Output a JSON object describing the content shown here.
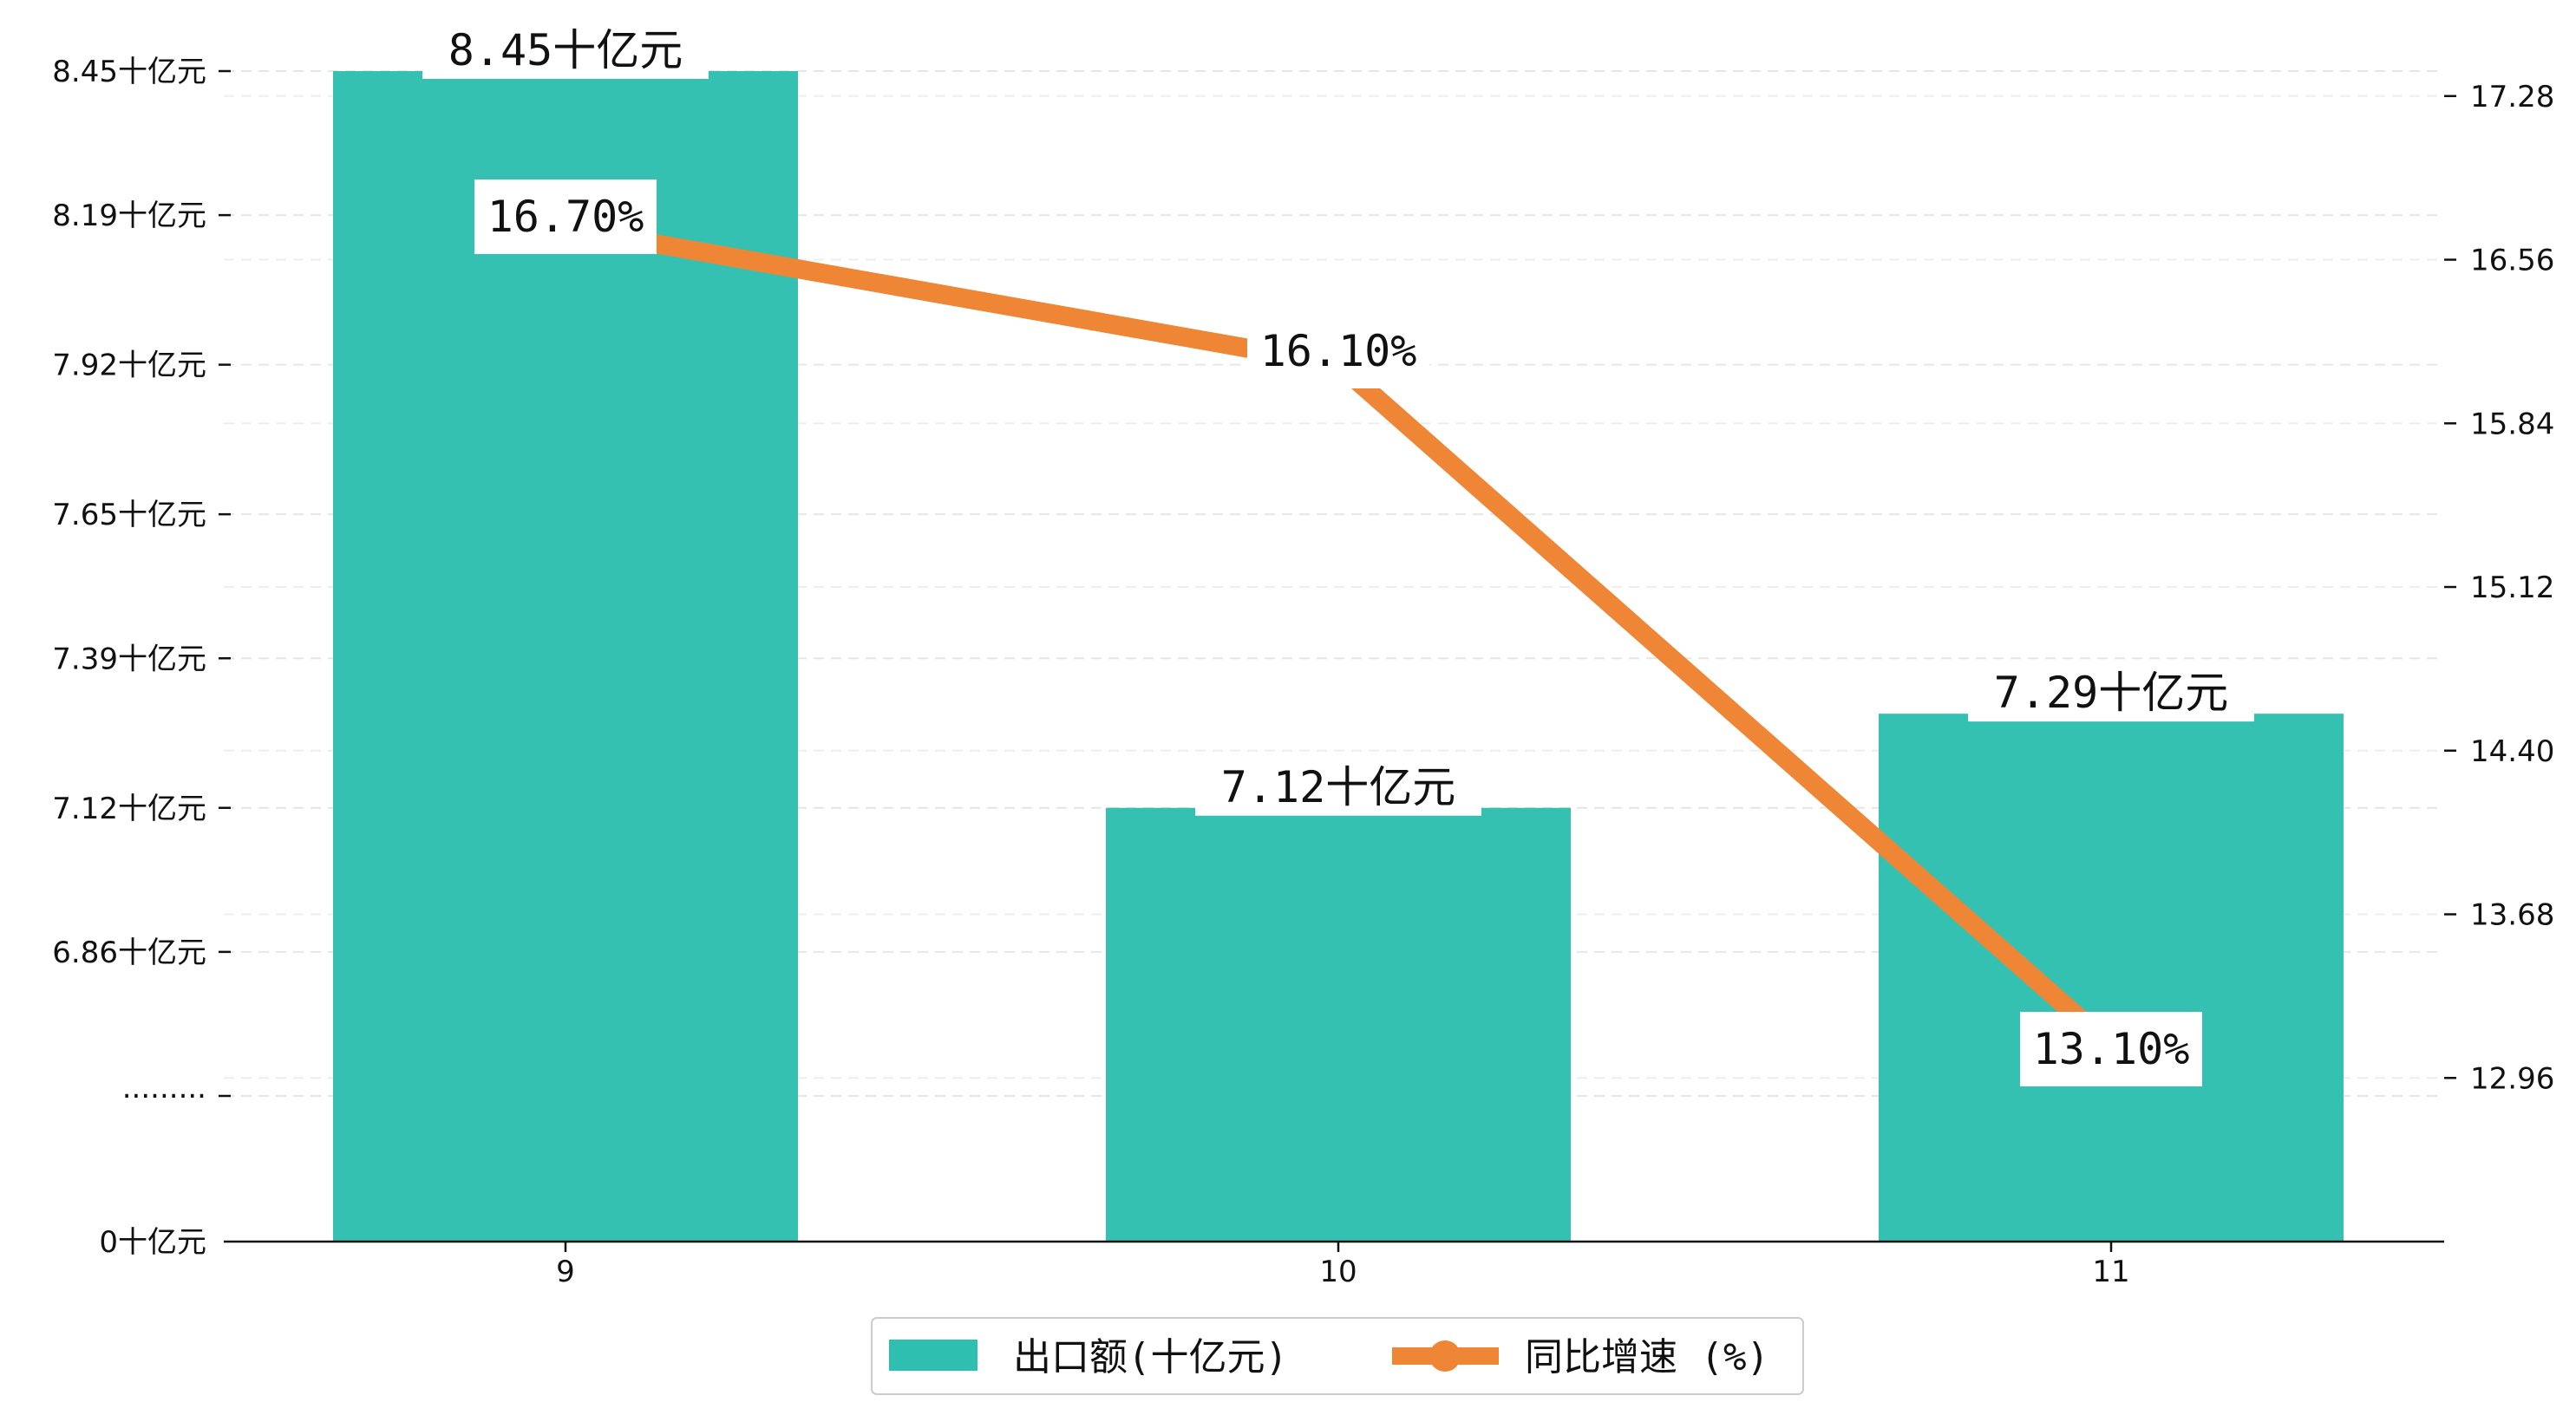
{
  "chart_data": {
    "type": "bar",
    "categories": [
      "9",
      "10",
      "11"
    ],
    "series": [
      {
        "name": "出口额(十亿元)",
        "type": "bar",
        "axis": "left",
        "color": "#2ebfb0",
        "values": [
          8.45,
          7.12,
          7.29
        ],
        "labels": [
          "8.45十亿元",
          "7.12十亿元",
          "7.29十亿元"
        ]
      },
      {
        "name": "同比增速 (%)",
        "type": "line",
        "axis": "right",
        "color": "#ef8636",
        "values": [
          16.7,
          16.1,
          13.1
        ],
        "labels": [
          "16.70%",
          "16.10%",
          "13.10%"
        ]
      }
    ],
    "left_axis": {
      "broken": true,
      "segments": [
        [
          0,
          0
        ],
        [
          6.6,
          8.45
        ]
      ],
      "ticks": [
        {
          "value": 0,
          "label": "0十亿元"
        },
        {
          "value": 6.6,
          "label": "........."
        },
        {
          "value": 6.86,
          "label": "6.86十亿元"
        },
        {
          "value": 7.12,
          "label": "7.12十亿元"
        },
        {
          "value": 7.39,
          "label": "7.39十亿元"
        },
        {
          "value": 7.65,
          "label": "7.65十亿元"
        },
        {
          "value": 7.92,
          "label": "7.92十亿元"
        },
        {
          "value": 8.19,
          "label": "8.19十亿元"
        },
        {
          "value": 8.45,
          "label": "8.45十亿元"
        }
      ]
    },
    "right_axis": {
      "range": [
        12.24,
        17.55
      ],
      "ticks": [
        "12.96",
        "13.68",
        "14.40",
        "15.12",
        "15.84",
        "16.56",
        "17.28"
      ]
    },
    "grid": "horizontal dashed",
    "legend": {
      "position": "bottom-center"
    }
  }
}
